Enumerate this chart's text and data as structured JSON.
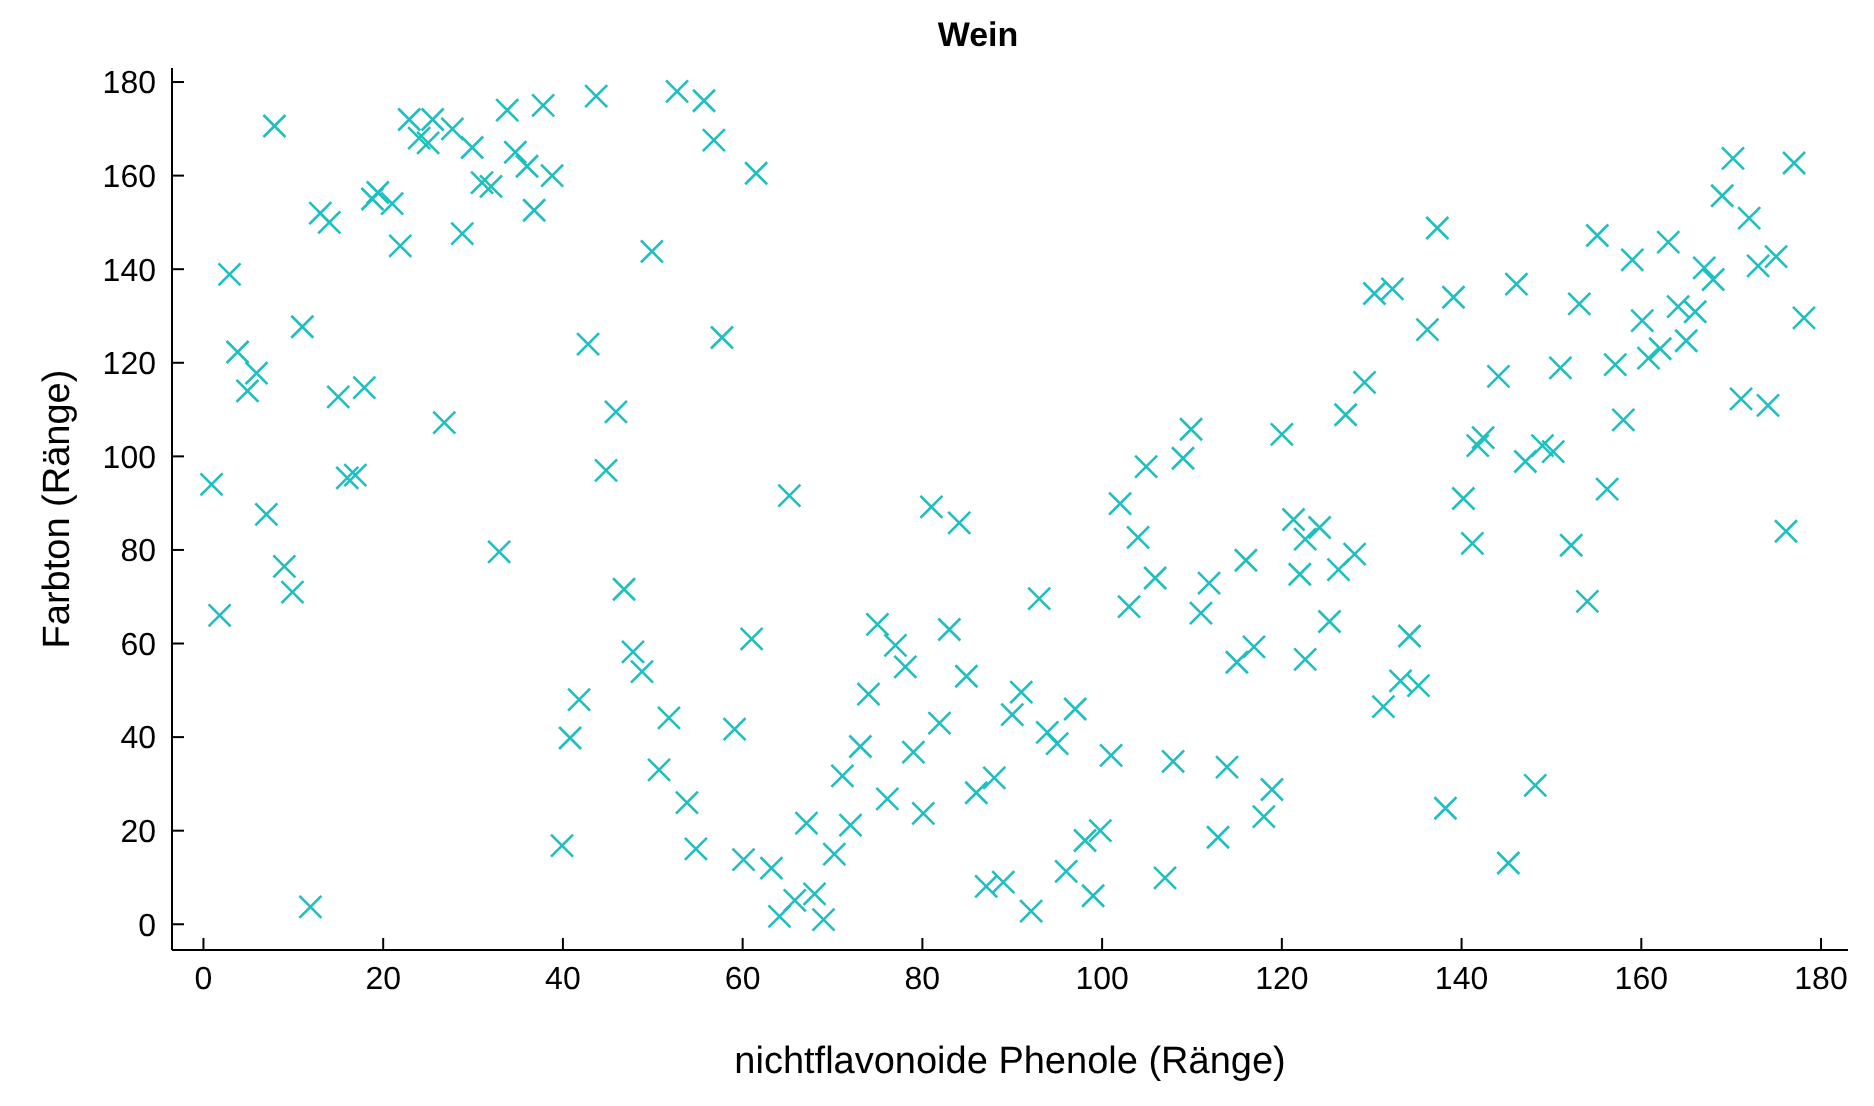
{
  "chart_data": {
    "type": "scatter",
    "title": "Wein",
    "xlabel": "nichtflavonoide Phenole (Ränge)",
    "ylabel": "Farbton (Ränge)",
    "xlim": [
      -3.5,
      183
    ],
    "ylim": [
      -5.5,
      183
    ],
    "xticks": [
      0,
      20,
      40,
      60,
      80,
      100,
      120,
      140,
      160,
      180
    ],
    "yticks": [
      0,
      20,
      40,
      60,
      80,
      100,
      120,
      140,
      160,
      180
    ],
    "grid": false,
    "legend": false,
    "marker": "cross",
    "series": [
      {
        "color": "#1fbfbf",
        "x": [
          7.9,
          22.9,
          25.5,
          27.7,
          24,
          25,
          29.9,
          33.8,
          37.8,
          43.7,
          52.7,
          55.7,
          56.8,
          34.7,
          36,
          38.8,
          31,
          32,
          61.5,
          19.4,
          18.8,
          21,
          13,
          14,
          36.8,
          28.8,
          21.9,
          49.9,
          2.9,
          11,
          42.8,
          57.7,
          3.8,
          5.9,
          4.9,
          17.9,
          15,
          26.8,
          45.9,
          44.8,
          16,
          16.9,
          0.9,
          7,
          9,
          9.9,
          1.8,
          32.9,
          46.8,
          61,
          47.8,
          48.8,
          41.8,
          40.8,
          51.8,
          59.1,
          50.7,
          53.8,
          54.8,
          60.1,
          39.9,
          11.9,
          65.2,
          81,
          84.1,
          102,
          104,
          121.3,
          122.6,
          116,
          122,
          105.9,
          111.9,
          93,
          103,
          111,
          116.9,
          115,
          122.6,
          75,
          77,
          83,
          78.1,
          84.9,
          74,
          91,
          90,
          97,
          81.9,
          93.9,
          95,
          73.1,
          79,
          101,
          107.9,
          113.9,
          71.1,
          88,
          86,
          76.1,
          80.1,
          118.9,
          118,
          67.1,
          72,
          70.2,
          63.2,
          99.8,
          98.1,
          112.9,
          96,
          99,
          107,
          87.1,
          89,
          65.8,
          68,
          92.1,
          64.1,
          69,
          124.2,
          128.1,
          126.3,
          125.3,
          134.2,
          133.2,
          135.2,
          131.3,
          140.2,
          141.2,
          152.2,
          154,
          176.1,
          138.2,
          148.2,
          145.2,
          170.2,
          177,
          169,
          172,
          137.3,
          155.1,
          163,
          159,
          167,
          168,
          175,
          173,
          130.3,
          132.3,
          139.1,
          146.1,
          136.2,
          153.1,
          160.1,
          164.1,
          166,
          165,
          162.1,
          160.8,
          178.1,
          157.1,
          151,
          144.1,
          129.2,
          127.1,
          120,
          158,
          171.1,
          174.1,
          142.4,
          141.8,
          149,
          150.2,
          147.1,
          156.2,
          109.9,
          104.9,
          109
        ],
        "values": [
          170.6,
          172,
          172,
          170,
          168,
          167,
          166,
          174,
          175,
          177,
          178,
          176,
          167.6,
          165,
          162,
          160,
          158.5,
          157.7,
          160.5,
          156.4,
          155,
          154,
          152,
          150,
          152.6,
          147.6,
          145,
          143.8,
          138.9,
          127.7,
          124,
          125.4,
          122.3,
          117.8,
          114,
          114.7,
          112.7,
          107.2,
          109.5,
          97,
          95.4,
          96,
          94,
          87.6,
          76.5,
          71,
          66,
          79.6,
          71.6,
          61,
          58.2,
          54,
          48,
          39.8,
          44.1,
          41.7,
          33,
          26,
          16.1,
          13.8,
          16.8,
          3.7,
          91.6,
          89.2,
          85.8,
          89.9,
          82.7,
          86.5,
          82.3,
          77.8,
          74.8,
          74,
          72.9,
          69.6,
          67.9,
          66.5,
          59.3,
          56,
          56.6,
          64.1,
          59.6,
          63,
          55,
          53,
          49.2,
          49.6,
          44.8,
          46,
          43,
          41,
          38.6,
          38,
          36.8,
          36.1,
          34.8,
          33.6,
          31.7,
          31.3,
          28.1,
          26.8,
          23.7,
          28.8,
          23,
          21.6,
          21.2,
          15,
          12,
          20,
          17.9,
          18.6,
          11.3,
          6.1,
          9.9,
          8.1,
          9,
          5.1,
          6.5,
          2.8,
          1.7,
          1,
          84.8,
          79.1,
          75.8,
          64.7,
          61.6,
          52,
          51,
          46.5,
          91,
          81.4,
          81,
          69,
          84,
          24.8,
          29.7,
          13.1,
          163.7,
          162.7,
          155.7,
          150.9,
          148.8,
          147.2,
          145.8,
          142,
          140.3,
          137.8,
          142.7,
          140.7,
          134.8,
          135.8,
          134,
          136.8,
          127.1,
          132.6,
          129,
          132,
          130.9,
          124.7,
          123,
          121,
          129.6,
          119.6,
          118.9,
          117.1,
          115.8,
          108.9,
          104.7,
          107.8,
          112.3,
          110.9,
          104,
          102.3,
          102.3,
          101,
          98.9,
          93,
          105.8,
          97.8,
          99.6
        ]
      }
    ]
  }
}
